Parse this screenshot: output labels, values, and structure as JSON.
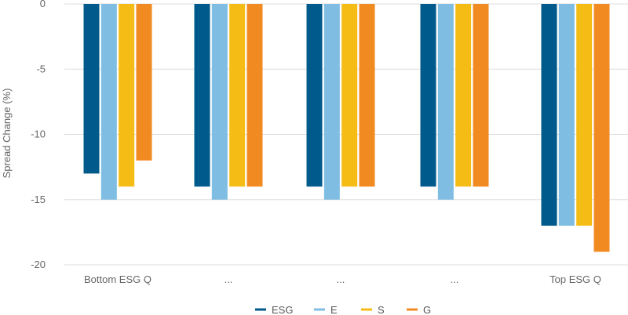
{
  "chart_data": {
    "type": "bar",
    "title": "",
    "xlabel": "",
    "ylabel": "Spread Change (%)",
    "ylim": [
      -20,
      0
    ],
    "yticks": [
      0,
      -5,
      -10,
      -15,
      -20
    ],
    "grid": "horizontal",
    "legend_position": "bottom",
    "categories": [
      "Bottom ESG Q",
      "...",
      "...",
      "...",
      "Top ESG Q"
    ],
    "series": [
      {
        "name": "ESG",
        "color": "#005a8c",
        "values": [
          -13,
          -14,
          -14,
          -14,
          -17
        ]
      },
      {
        "name": "E",
        "color": "#7fbde3",
        "values": [
          -15,
          -15,
          -15,
          -15,
          -17
        ]
      },
      {
        "name": "S",
        "color": "#f5bc16",
        "values": [
          -14,
          -14,
          -14,
          -14,
          -17
        ]
      },
      {
        "name": "G",
        "color": "#f28a22",
        "values": [
          -12,
          -14,
          -14,
          -14,
          -19
        ]
      }
    ]
  }
}
